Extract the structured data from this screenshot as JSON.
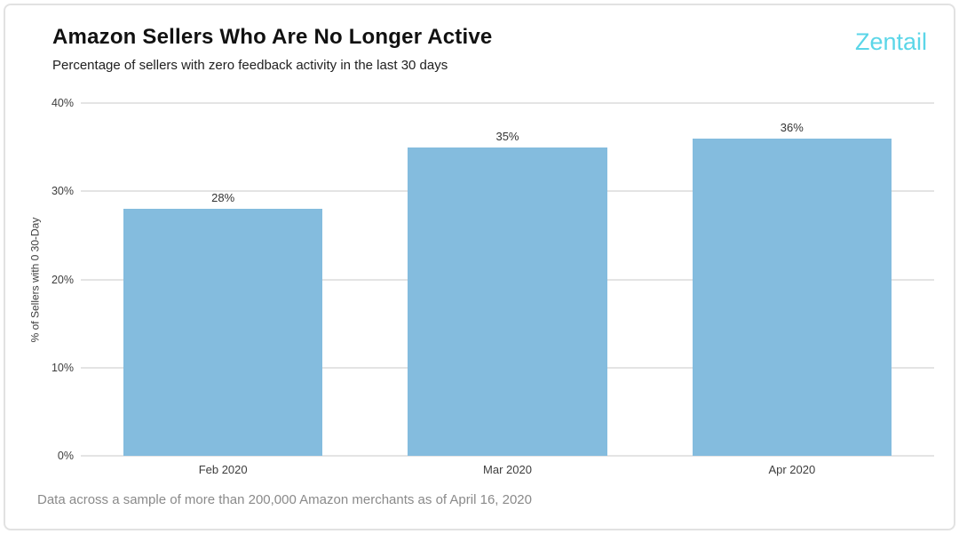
{
  "header": {
    "title": "Amazon Sellers Who Are No Longer Active",
    "subtitle": "Percentage of sellers with zero feedback activity in the last 30 days",
    "logo_text": "Zentail"
  },
  "footer": {
    "note": "Data across a sample of more than 200,000 Amazon merchants as of April 16, 2020"
  },
  "colors": {
    "bar": "#84BCDE",
    "logo": "#5BD6E8",
    "gridline": "#E4E4E4",
    "title_text": "#111111",
    "footer_text": "#8A8A8A"
  },
  "chart_data": {
    "type": "bar",
    "title": "Amazon Sellers Who Are No Longer Active",
    "subtitle": "Percentage of sellers with zero feedback activity in the last 30 days",
    "categories": [
      "Feb 2020",
      "Mar 2020",
      "Apr 2020"
    ],
    "values": [
      28,
      35,
      36
    ],
    "value_labels": [
      "28%",
      "35%",
      "36%"
    ],
    "xlabel": "",
    "ylabel": "% of Sellers with 0 30-Day",
    "ylim": [
      0,
      40
    ],
    "yticks": [
      0,
      10,
      20,
      30,
      40
    ],
    "ytick_labels": [
      "0%",
      "10%",
      "20%",
      "30%",
      "40%"
    ],
    "grid": true,
    "legend": false,
    "annotation": "Data across a sample of more than 200,000 Amazon merchants as of April 16, 2020"
  }
}
